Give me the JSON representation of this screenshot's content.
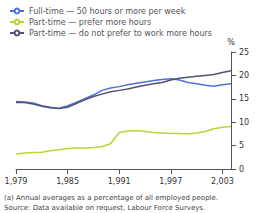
{
  "chart_data": {
    "type": "line",
    "ylabel": "%",
    "x": [
      1979,
      1980,
      1981,
      1982,
      1983,
      1984,
      1985,
      1986,
      1987,
      1988,
      1989,
      1990,
      1991,
      1992,
      1993,
      1994,
      1995,
      1996,
      1997,
      1998,
      1999,
      2000,
      2001,
      2002,
      2003,
      2004
    ],
    "series": [
      {
        "name": "Full-time — 50 hours or more per week",
        "values": [
          14.4,
          14.3,
          14.1,
          13.5,
          13.2,
          13.0,
          13.5,
          14.2,
          15.0,
          15.8,
          16.8,
          17.3,
          17.6,
          18.0,
          18.3,
          18.6,
          18.9,
          19.1,
          19.3,
          19.0,
          18.5,
          18.2,
          17.9,
          17.7,
          18.0,
          18.2
        ]
      },
      {
        "name": "Part-time — prefer more hours",
        "values": [
          3.2,
          3.4,
          3.5,
          3.6,
          3.9,
          4.1,
          4.4,
          4.5,
          4.5,
          4.6,
          4.8,
          5.4,
          7.8,
          8.1,
          8.2,
          8.0,
          7.8,
          7.7,
          7.6,
          7.6,
          7.5,
          7.7,
          8.0,
          8.6,
          8.9,
          9.1
        ]
      },
      {
        "name": "Part-time — do not prefer to work more hours",
        "values": [
          14.2,
          14.2,
          13.9,
          13.4,
          13.1,
          12.9,
          13.2,
          14.0,
          14.8,
          15.5,
          16.0,
          16.5,
          16.8,
          17.1,
          17.5,
          17.9,
          18.2,
          18.5,
          19.0,
          19.4,
          19.6,
          19.8,
          20.0,
          20.2,
          20.6,
          21.0
        ]
      }
    ],
    "xlim": [
      1979,
      2004
    ],
    "xticks": [
      1979,
      1985,
      1991,
      1997,
      2003
    ],
    "ylim": [
      0,
      25
    ],
    "yticks": [
      0,
      5,
      10,
      15,
      20,
      25
    ],
    "grid": false,
    "legend": "upper left",
    "annotations": [
      "(a) Annual averages as a percentage of all employed people.",
      "Source: Data available on request, Labour Force Surveys."
    ]
  }
}
